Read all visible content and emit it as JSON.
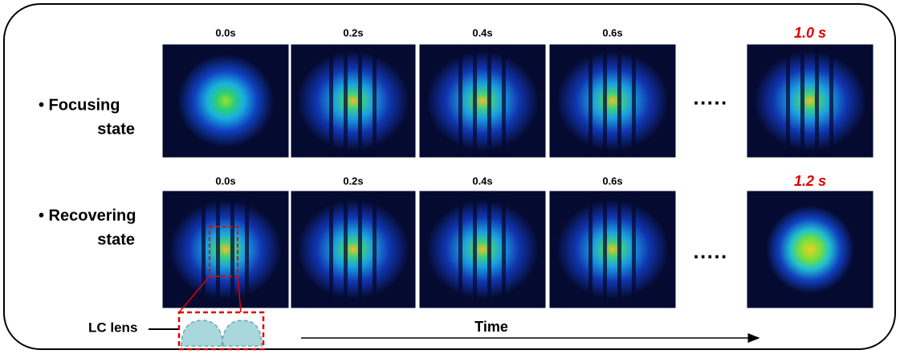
{
  "rows": [
    {
      "label_lines": [
        "• Focusing",
        "state"
      ],
      "times": [
        "0.0s",
        "0.2s",
        "0.4s",
        "0.6s",
        "1.0 s"
      ],
      "ellipsis": "·····"
    },
    {
      "label_lines": [
        "• Recovering",
        "state"
      ],
      "times": [
        "0.0s",
        "0.2s",
        "0.4s",
        "0.6s",
        "1.2 s"
      ],
      "ellipsis": "·····"
    }
  ],
  "lc_lens": "LC lens",
  "time_axis": "Time"
}
